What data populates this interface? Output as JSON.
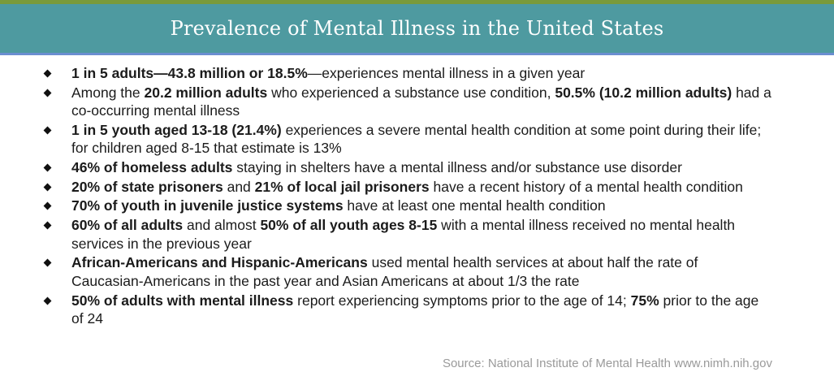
{
  "header": {
    "title": "Prevalence of Mental Illness in the United States"
  },
  "items": [
    [
      {
        "b": true,
        "t": "1 in 5 adults—43.8 million or 18.5%"
      },
      {
        "b": false,
        "t": "—experiences mental illness in a given year"
      }
    ],
    [
      {
        "b": false,
        "t": "Among the "
      },
      {
        "b": true,
        "t": "20.2 million adults"
      },
      {
        "b": false,
        "t": " who experienced a substance use condition, "
      },
      {
        "b": true,
        "t": "50.5% (10.2 million adults)"
      },
      {
        "b": false,
        "t": " had a co-occurring mental illness"
      }
    ],
    [
      {
        "b": true,
        "t": "1 in 5 youth aged 13-18 (21.4%)"
      },
      {
        "b": false,
        "t": " experiences a severe mental health condition at some point during their life; for children aged 8-15 that estimate is 13%"
      }
    ],
    [
      {
        "b": true,
        "t": "46% of homeless adults"
      },
      {
        "b": false,
        "t": " staying in shelters have a mental illness and/or substance use disorder"
      }
    ],
    [
      {
        "b": true,
        "t": "20% of state prisoners"
      },
      {
        "b": false,
        "t": " and "
      },
      {
        "b": true,
        "t": "21% of local jail prisoners"
      },
      {
        "b": false,
        "t": " have a recent history of a mental health condition"
      }
    ],
    [
      {
        "b": true,
        "t": "70% of youth in juvenile justice systems"
      },
      {
        "b": false,
        "t": " have at least one mental health condition"
      }
    ],
    [
      {
        "b": true,
        "t": "60% of all adults"
      },
      {
        "b": false,
        "t": " and almost "
      },
      {
        "b": true,
        "t": "50% of all youth ages 8-15"
      },
      {
        "b": false,
        "t": " with a mental illness received no mental health services in the previous year"
      }
    ],
    [
      {
        "b": true,
        "t": "African-Americans and Hispanic-Americans"
      },
      {
        "b": false,
        "t": " used mental health services at about half the rate of Caucasian-Americans in the past year and Asian Americans at about 1/3 the rate"
      }
    ],
    [
      {
        "b": true,
        "t": "50% of adults with mental illness"
      },
      {
        "b": false,
        "t": " report experiencing symptoms prior to the age of 14; "
      },
      {
        "b": true,
        "t": "75%"
      },
      {
        "b": false,
        "t": " prior to the age of 24"
      }
    ]
  ],
  "source": "Source: National Institute of Mental Health www.nimh.nih.gov"
}
